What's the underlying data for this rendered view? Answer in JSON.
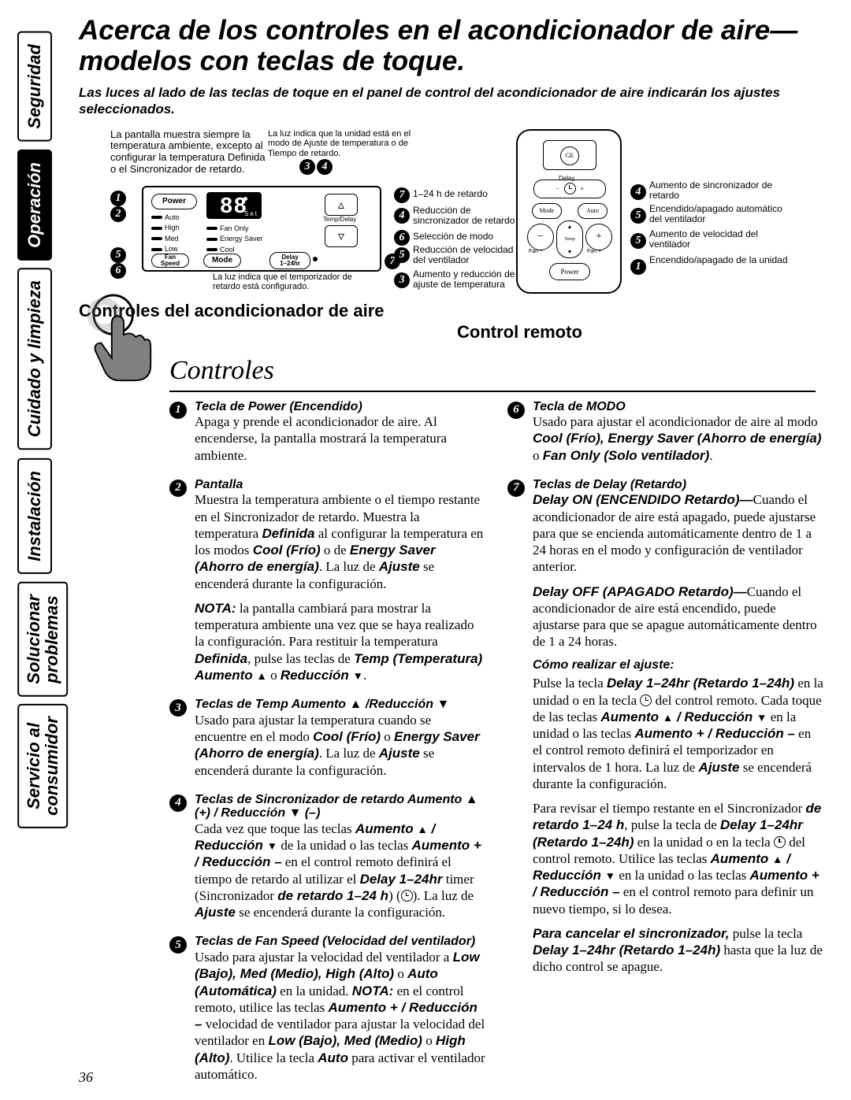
{
  "sidebar": {
    "tabs": [
      {
        "label": "Seguridad",
        "active": false
      },
      {
        "label": "Operación",
        "active": true
      },
      {
        "label": "Cuidado y limpieza",
        "active": false
      },
      {
        "label": "Instalación",
        "active": false
      },
      {
        "label": "Solucionar\nproblemas",
        "active": false
      },
      {
        "label": "Servicio al\nconsumidor",
        "active": false
      }
    ]
  },
  "title": "Acerca de los controles en el acondicionador de aire—modelos con teclas de toque.",
  "subtitle": "Las luces al lado de las teclas de toque en el panel de control del acondicionador de aire indicarán los ajustes seleccionados.",
  "diagram": {
    "note_left": "La pantalla muestra siempre la temperatura ambiente, excepto al configurar la temperatura Definida o el Sincronizador de retardo.",
    "note_mid": "La luz indica que la unidad está en el modo de Ajuste de temperatura o de Tiempo de retardo.",
    "note_bottom": "La luz indica que el temporizador de retardo está configurado.",
    "panel": {
      "display": "88",
      "display_sub": "Set",
      "btn_power": "Power",
      "btn_fan": "Fan\nSpeed",
      "btn_mode": "Mode",
      "btn_delay": "Delay\n1–24hr",
      "btn_temp": "Temp/Delay",
      "led_left": [
        "Auto",
        "High",
        "Med",
        "Low"
      ],
      "led_right": [
        "Fan Only",
        "Energy Saver",
        "Cool"
      ]
    },
    "labels_mid": {
      "l7": "1–24 h de retardo",
      "l4": "Reducción de sincronizador de retardo",
      "l6": "Selección de modo",
      "l5": "Reducción de velocidad del ventilador",
      "l3": "Aumento y reducción de ajuste de temperatura"
    },
    "labels_right": {
      "r4": "Aumento de sincronizador de retardo",
      "r5a": "Encendido/apagado automático del ventilador",
      "r5b": "Aumento de velocidad del ventilador",
      "r1": "Encendido/apagado de la unidad"
    },
    "section_left": "Controles del acondicionador de aire",
    "section_right": "Control remoto",
    "section_title": "Controles"
  },
  "list_left": [
    {
      "n": "1",
      "head": "Tecla de Power (Encendido)",
      "body": "Apaga y prende el acondicionador de aire. Al encenderse, la pantalla mostrará la temperatura ambiente."
    },
    {
      "n": "2",
      "head": "Pantalla",
      "body": "Muestra la temperatura ambiente o el tiempo restante en el Sincronizador de retardo. Muestra la temperatura <strong class='bi'>Definida</strong> al configurar la temperatura en los modos <strong class='bi'>Cool (Frío)</strong> o de <strong class='bi'>Energy Saver (Ahorro de energía)</strong>. La luz de <strong class='bi'>Ajuste</strong> se encenderá durante la configuración.",
      "note": "<strong class='bi'>NOTA:</strong> la pantalla cambiará para mostrar la temperatura ambiente una vez que se haya realizado la configuración. Para restituir la temperatura <strong class='bi'>Definida</strong>, pulse las teclas de <strong class='bi'>Temp (Temperatura) Aumento <span class='tri-up'></span></strong> o <strong class='bi'>Reducción <span class='tri-dn'></span></strong>."
    },
    {
      "n": "3",
      "head": "Teclas de Temp Aumento ▲ /Reducción ▼",
      "body": "Usado para ajustar la temperatura cuando se encuentre en el modo <strong class='bi'>Cool (Frío)</strong> o <strong class='bi'>Energy Saver (Ahorro de energía)</strong>. La luz de <strong class='bi'>Ajuste</strong> se encenderá durante la configuración."
    },
    {
      "n": "4",
      "head": "Teclas de Sincronizador de retardo Aumento ▲ (+) / Reducción ▼ (–)",
      "body": "Cada vez que toque las teclas <strong class='bi'>Aumento <span class='tri-up'></span> / Reducción <span class='tri-dn'></span></strong> de la unidad o las teclas <strong class='bi'>Aumento + / Reducción –</strong> en el control remoto definirá el tiempo de retardo al utilizar el <strong class='bi'>Delay 1–24hr</strong> timer (Sincronizador <strong class='bi'>de retardo 1–24 h</strong>) (<span class='delay-ico'></span>). La luz de <strong class='bi'>Ajuste</strong> se encenderá durante la configuración."
    },
    {
      "n": "5",
      "head": "Teclas de Fan Speed (Velocidad del ventilador)",
      "body": "Usado para ajustar la velocidad del ventilador a <strong class='bi'>Low (Bajo), Med (Medio), High (Alto)</strong> o <strong class='bi'>Auto (Automática)</strong> en la unidad. <strong class='bi'>NOTA:</strong> en el control remoto, utilice las teclas <strong class='bi'>Aumento + / Reducción –</strong> velocidad de ventilador para ajustar la velocidad del ventilador en <strong class='bi'>Low (Bajo), Med (Medio)</strong> o <strong class='bi'>High (Alto)</strong>. Utilice la tecla <strong class='bi'>Auto</strong> para activar el ventilador automático."
    }
  ],
  "list_right": [
    {
      "n": "6",
      "head": "Tecla de MODO",
      "body": "Usado para ajustar el acondicionador de aire al modo <strong class='bi'>Cool (Frío), Energy Saver (Ahorro de energía)</strong> o <strong class='bi'>Fan Only (Solo ventilador)</strong>."
    },
    {
      "n": "7",
      "head": "Teclas de Delay (Retardo)",
      "body": "<strong class='bi'>Delay ON (ENCENDIDO Retardo)—</strong>Cuando el acondicionador de aire está apagado, puede ajustarse para que se encienda automáticamente dentro de 1 a 24 horas en el modo y configuración de ventilador anterior.",
      "body2": "<strong class='bi'>Delay OFF (APAGADO Retardo)—</strong>Cuando el acondicionador de aire está encendido, puede ajustarse para que se apague automáticamente dentro de 1 a 24 horas.",
      "sub_head": "Cómo realizar el ajuste:",
      "sub_body": "Pulse la tecla <strong class='bi'>Delay 1–24hr (Retardo 1–24h)</strong> en la unidad o en la tecla <span class='delay-ico'></span> del control remoto. Cada toque de las teclas <strong class='bi'>Aumento <span class='tri-up'></span> / Reducción <span class='tri-dn'></span></strong> en la unidad o las teclas <strong class='bi'>Aumento + / Reducción –</strong> en el control remoto definirá el temporizador en intervalos de 1 hora. La luz de <strong class='bi'>Ajuste</strong> se encenderá durante la configuración.",
      "sub_body2": "Para revisar el tiempo restante en el Sincronizador <strong class='bi'>de retardo 1–24 h</strong>, pulse la tecla de <strong class='bi'>Delay 1–24hr (Retardo 1–24h)</strong> en la unidad o en la tecla <span class='delay-ico'></span> del control remoto. Utilice las teclas <strong class='bi'>Aumento <span class='tri-up'></span> / Reducción <span class='tri-dn'></span></strong> en la unidad o las teclas <strong class='bi'>Aumento + / Reducción –</strong> en el control remoto para definir un nuevo tiempo, si lo desea.",
      "sub_body3": "<strong class='bi'>Para cancelar el sincronizador,</strong> pulse la tecla <strong class='bi'>Delay 1–24hr (Retardo 1–24h)</strong> hasta que la luz de dicho control se apague."
    }
  ],
  "page_number": "36"
}
